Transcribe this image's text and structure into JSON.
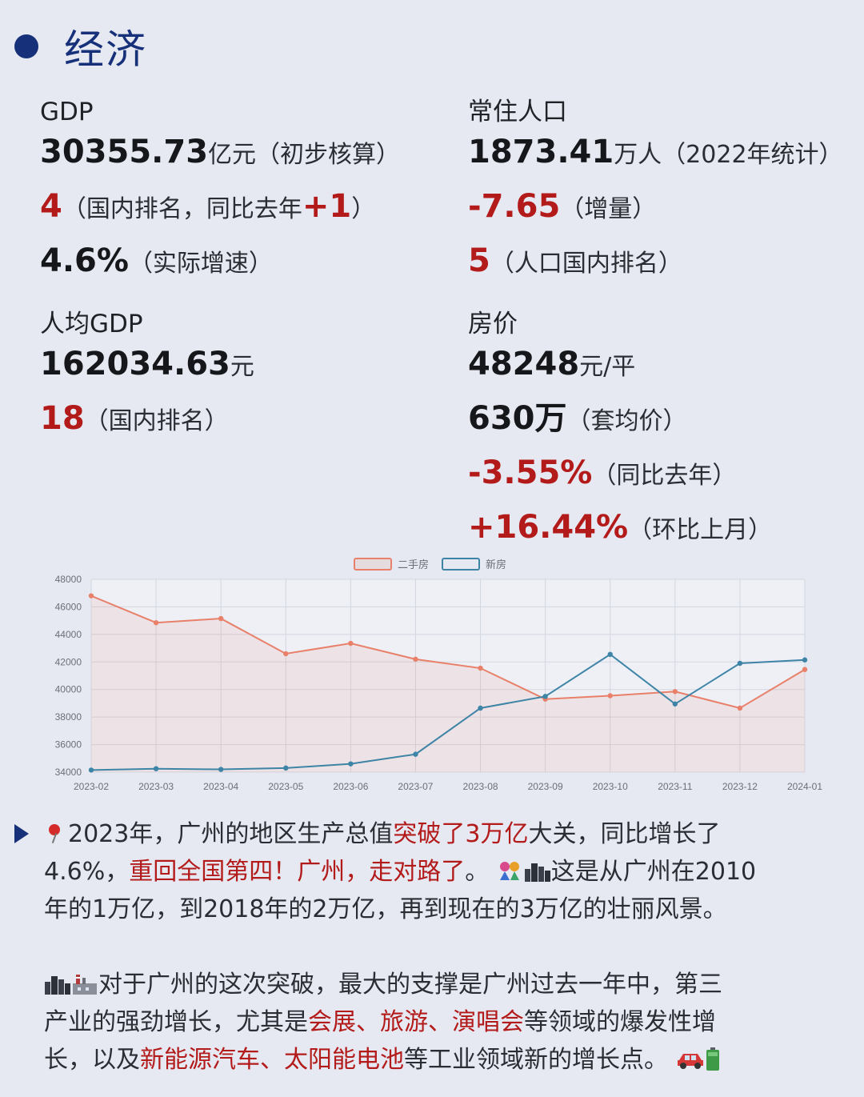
{
  "section": {
    "title": "经济"
  },
  "gdp": {
    "label": "GDP",
    "value": "30355.73",
    "unit": "亿元（初步核算）",
    "rank": "4",
    "rank_text": "（国内排名，同比去年",
    "rank_change": "+1",
    "rank_close": "）",
    "growth": "4.6%",
    "growth_text": "（实际增速）"
  },
  "population": {
    "label": "常住人口",
    "value": "1873.41",
    "unit": "万人（2022年统计）",
    "change": "-7.65",
    "change_text": "（增量）",
    "rank": "5",
    "rank_text": "（人口国内排名）"
  },
  "gdp_per_capita": {
    "label": "人均GDP",
    "value": "162034.63",
    "unit": "元",
    "rank": "18",
    "rank_text": "（国内排名）"
  },
  "house_price": {
    "label": "房价",
    "value": "48248",
    "unit": "元/平",
    "avg": "630万",
    "avg_text": "（套均价）",
    "yoy": "-3.55%",
    "yoy_text": "（同比去年）",
    "mom": "+16.44%",
    "mom_text": "（环比上月）"
  },
  "chart_data": {
    "type": "line",
    "categories": [
      "2023-02",
      "2023-03",
      "2023-04",
      "2023-05",
      "2023-06",
      "2023-07",
      "2023-08",
      "2023-09",
      "2023-10",
      "2023-11",
      "2023-12",
      "2024-01"
    ],
    "series": [
      {
        "name": "二手房",
        "color": "#e8806a",
        "fill": "rgba(232,128,106,0.12)",
        "values": [
          46800,
          44850,
          45150,
          42600,
          43350,
          42200,
          41550,
          39300,
          39550,
          39850,
          38650,
          41450
        ]
      },
      {
        "name": "新房",
        "color": "#3d84a6",
        "values": [
          34150,
          34250,
          34200,
          34300,
          34600,
          35300,
          38650,
          39500,
          42550,
          38950,
          41900,
          42150
        ]
      }
    ],
    "ylim": [
      34000,
      48000
    ],
    "yticks": [
      34000,
      36000,
      38000,
      40000,
      42000,
      44000,
      46000,
      48000
    ],
    "grid": true,
    "legend": "top"
  },
  "paragraph1": {
    "p1": "2023年，广州的地区生产总值",
    "h1": "突破了3万亿",
    "p2": "大关，同比增长了",
    "p3": "4.6%，",
    "h2": "重回全国第四！广州，走对路了",
    "p4": "。",
    "p5": "这是从广州在2010",
    "p6": "年的1万亿，到2018年的2万亿，再到现在的3万亿的壮丽风景。"
  },
  "paragraph2": {
    "p1": "对于广州的这次突破，最大的支撑是广州过去一年中，第三",
    "p2": "产业的强劲增长，尤其是",
    "h1": "会展、旅游、演唱会",
    "p3": "等领域的爆发性增",
    "p4": "长，以及",
    "h2": "新能源汽车、太阳能电池",
    "p5": "等工业领域新的增长点。"
  },
  "icons": [
    "pushpin-icon",
    "party-icon",
    "cityscape-icon",
    "factory-icon",
    "car-icon",
    "battery-icon"
  ]
}
